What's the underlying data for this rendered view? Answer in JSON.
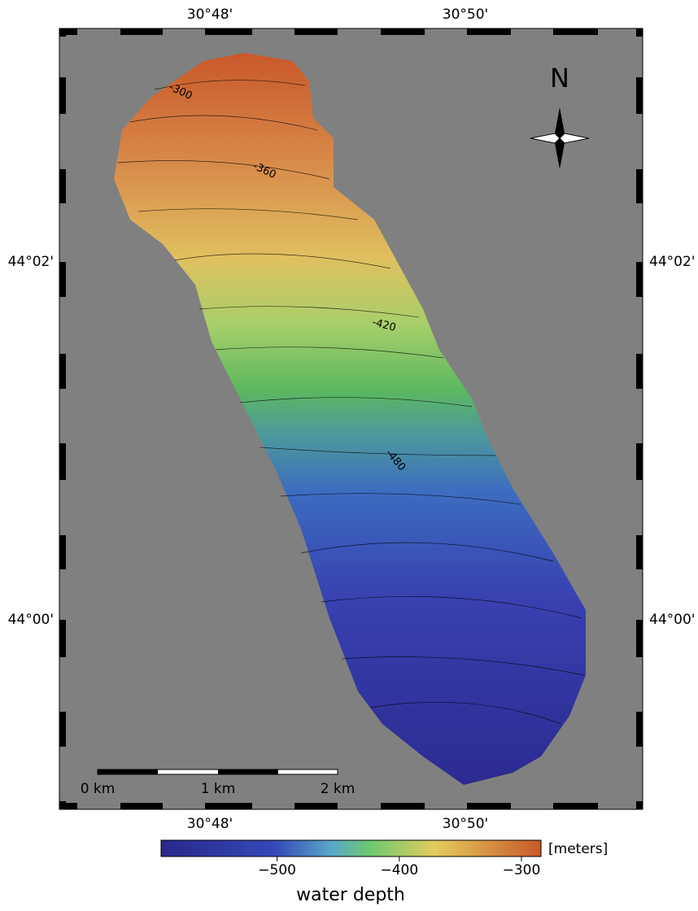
{
  "map": {
    "lon_labels": [
      "30°48'",
      "30°50'"
    ],
    "lat_labels": [
      "44°02'",
      "44°00'"
    ],
    "north_label": "N",
    "contour_labels": [
      "-300",
      "-360",
      "-420",
      "-480"
    ],
    "scale_bar": [
      "0 km",
      "1 km",
      "2 km"
    ],
    "colorbar": {
      "range": [
        -595,
        -284
      ],
      "ticks": [
        {
          "value": -500,
          "label": "−500"
        },
        {
          "value": -400,
          "label": "−400"
        },
        {
          "value": -300,
          "label": "−300"
        }
      ],
      "unit": "[meters]",
      "title": "water depth"
    }
  }
}
